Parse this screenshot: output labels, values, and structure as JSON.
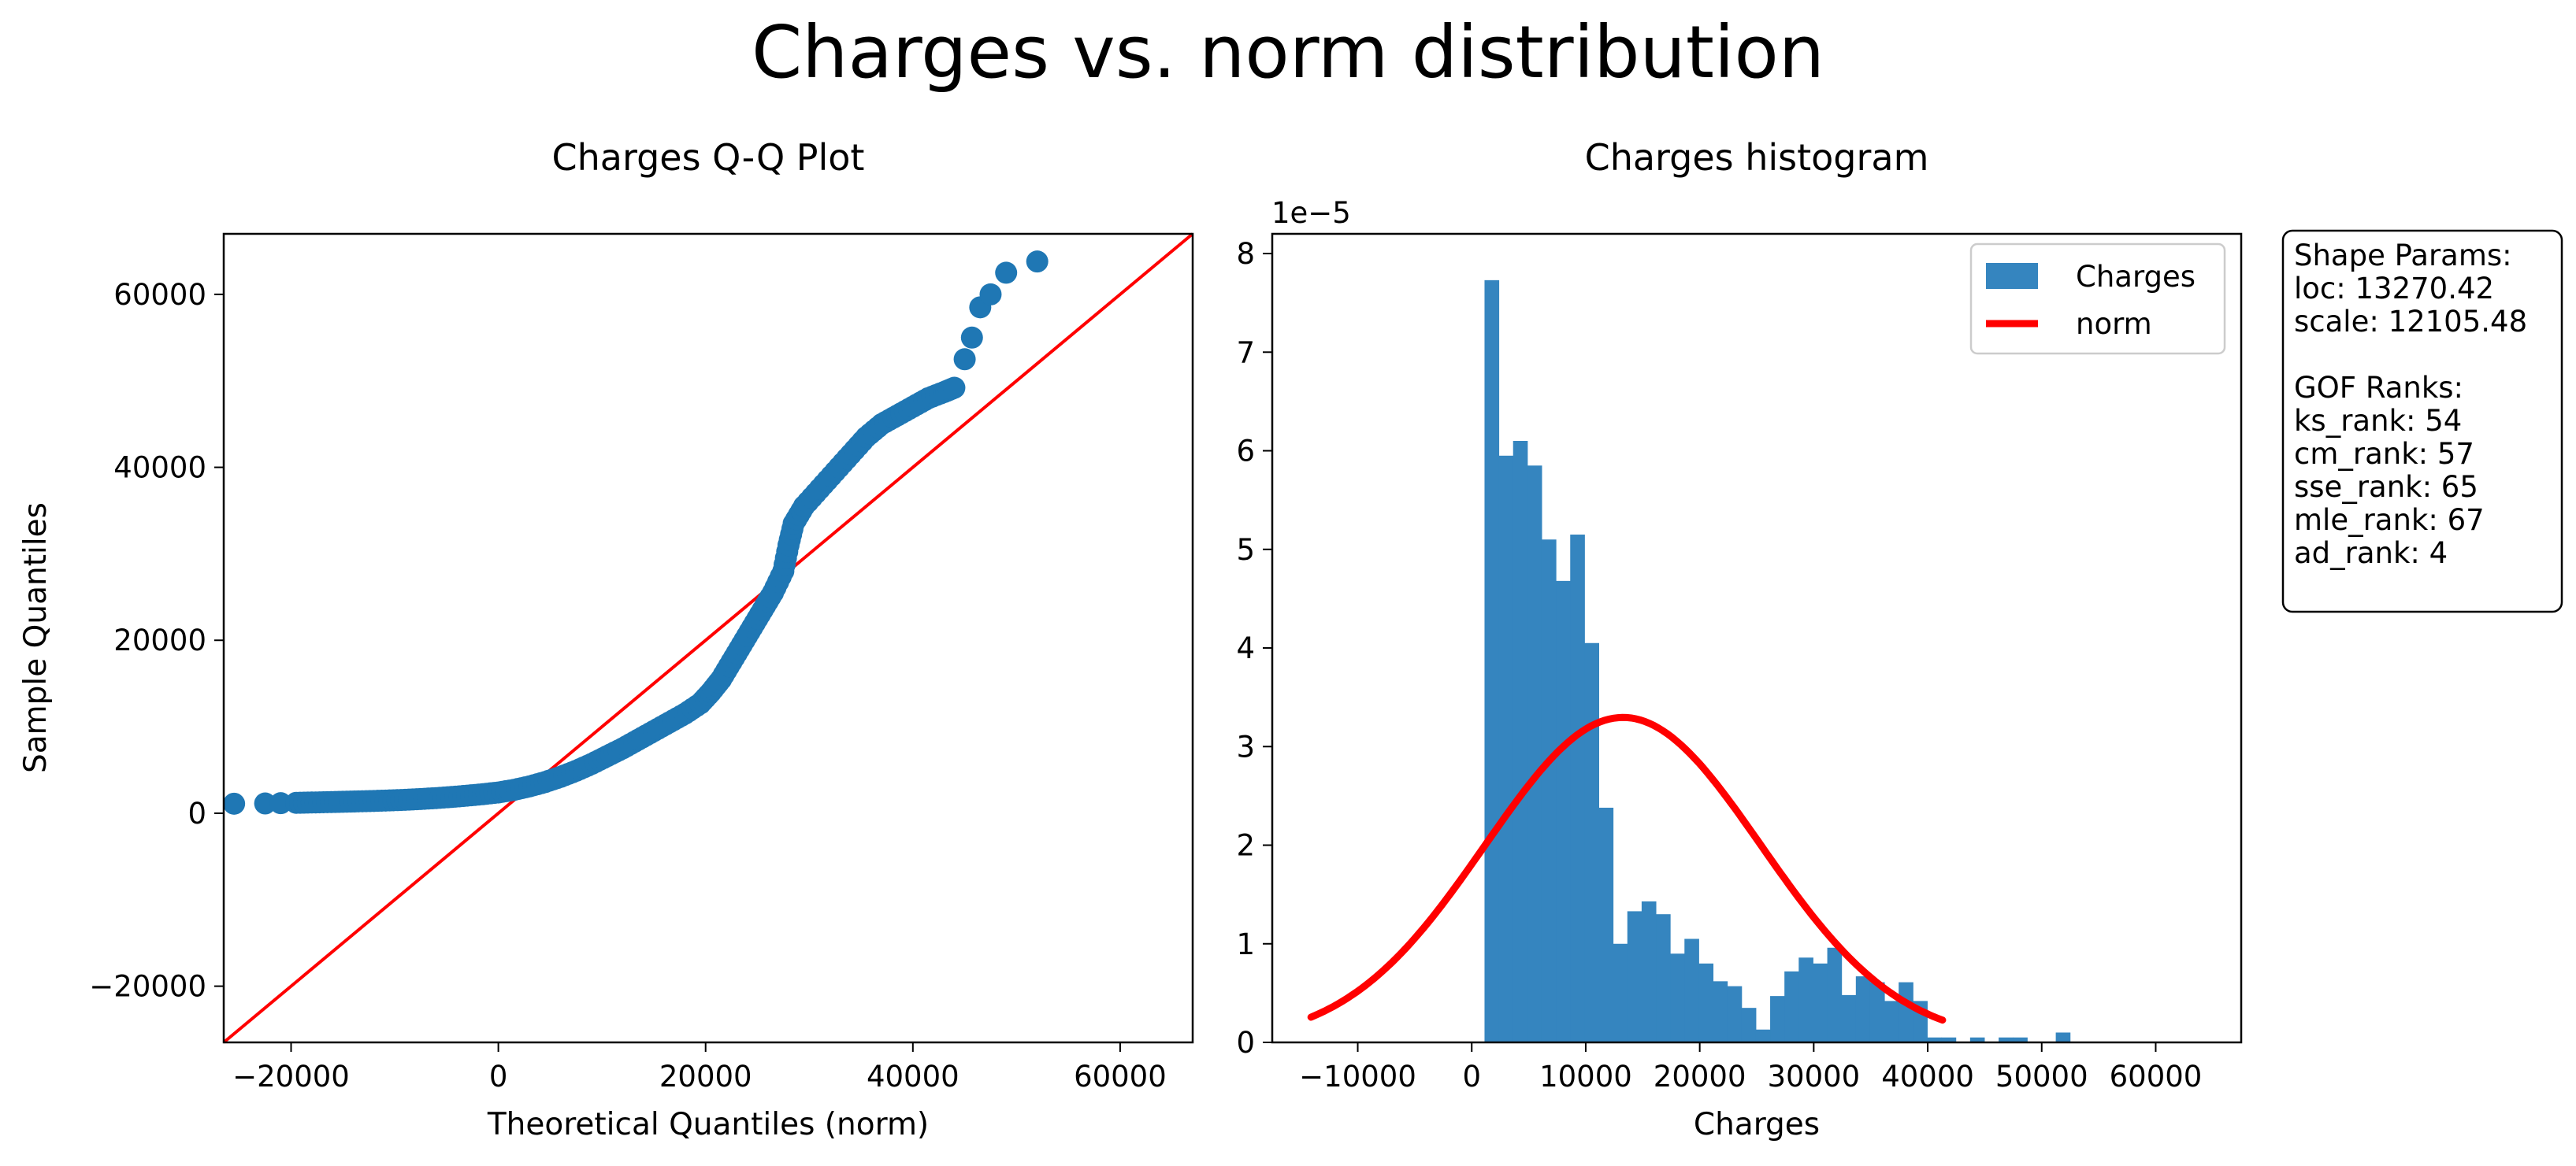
{
  "figure": {
    "suptitle": "Charges vs. norm distribution"
  },
  "chart_data": [
    {
      "type": "scatter",
      "title": "Charges Q-Q Plot",
      "xlabel": "Theoretical Quantiles (norm)",
      "ylabel": "Sample Quantiles",
      "xlim": [
        -26500,
        67000
      ],
      "ylim": [
        -26500,
        67000
      ],
      "xticks": [
        -20000,
        0,
        20000,
        40000,
        60000
      ],
      "xtick_labels": [
        "−20000",
        "0",
        "20000",
        "40000",
        "60000"
      ],
      "yticks": [
        -20000,
        0,
        20000,
        40000,
        60000
      ],
      "ytick_labels": [
        "−20000",
        "0",
        "20000",
        "40000",
        "60000"
      ],
      "points": [
        [
          -25500,
          1100
        ],
        [
          -22500,
          1130
        ],
        [
          -21000,
          1160
        ],
        [
          -19500,
          1200
        ],
        [
          -18000,
          1240
        ],
        [
          -16500,
          1280
        ],
        [
          -15000,
          1320
        ],
        [
          -13500,
          1370
        ],
        [
          -12000,
          1420
        ],
        [
          -10500,
          1480
        ],
        [
          -9000,
          1550
        ],
        [
          -7500,
          1640
        ],
        [
          -6000,
          1750
        ],
        [
          -4500,
          1880
        ],
        [
          -3000,
          2030
        ],
        [
          -1500,
          2200
        ],
        [
          0,
          2400
        ],
        [
          1500,
          2700
        ],
        [
          3000,
          3100
        ],
        [
          4500,
          3600
        ],
        [
          6000,
          4200
        ],
        [
          7500,
          4900
        ],
        [
          9000,
          5700
        ],
        [
          10500,
          6600
        ],
        [
          12000,
          7500
        ],
        [
          13500,
          8500
        ],
        [
          15000,
          9500
        ],
        [
          16500,
          10500
        ],
        [
          18000,
          11500
        ],
        [
          19500,
          12700
        ],
        [
          20500,
          14000
        ],
        [
          21500,
          15500
        ],
        [
          22500,
          17500
        ],
        [
          23500,
          19500
        ],
        [
          24500,
          21500
        ],
        [
          25500,
          23500
        ],
        [
          26500,
          25500
        ],
        [
          27500,
          28000
        ],
        [
          28000,
          31000
        ],
        [
          28500,
          33500
        ],
        [
          29500,
          35500
        ],
        [
          31000,
          37500
        ],
        [
          32500,
          39500
        ],
        [
          34000,
          41500
        ],
        [
          35500,
          43500
        ],
        [
          37000,
          45000
        ],
        [
          38500,
          46000
        ],
        [
          40000,
          47000
        ],
        [
          41500,
          48000
        ],
        [
          43000,
          48700
        ],
        [
          44000,
          49200
        ],
        [
          45000,
          52500
        ],
        [
          45700,
          55000
        ],
        [
          46500,
          58500
        ],
        [
          47500,
          60000
        ],
        [
          49000,
          62500
        ],
        [
          52000,
          63800
        ]
      ],
      "reference_line": {
        "from": [
          -26500,
          -26500
        ],
        "to": [
          67000,
          67000
        ]
      },
      "colors": {
        "points": "#1f77b4",
        "line": "#ff0000"
      }
    },
    {
      "type": "bar",
      "title": "Charges histogram",
      "xlabel": "Charges",
      "ylabel": "",
      "y_offset_label": "1e−5",
      "xlim": [
        -17500,
        67500
      ],
      "ylim": [
        0,
        8.2
      ],
      "xticks": [
        -10000,
        0,
        10000,
        20000,
        30000,
        40000,
        50000,
        60000
      ],
      "xtick_labels": [
        "−10000",
        "0",
        "10000",
        "20000",
        "30000",
        "40000",
        "50000",
        "60000"
      ],
      "yticks": [
        0,
        1,
        2,
        3,
        4,
        5,
        6,
        7,
        8
      ],
      "ytick_labels": [
        "0",
        "1",
        "2",
        "3",
        "4",
        "5",
        "6",
        "7",
        "8"
      ],
      "bins": {
        "start": 1122,
        "width": 1252.8
      },
      "values": [
        7.73,
        5.95,
        6.1,
        5.85,
        5.1,
        4.68,
        5.15,
        4.05,
        2.38,
        1.0,
        1.33,
        1.43,
        1.3,
        0.9,
        1.05,
        0.8,
        0.62,
        0.57,
        0.35,
        0.13,
        0.47,
        0.72,
        0.86,
        0.8,
        0.96,
        0.48,
        0.67,
        0.61,
        0.42,
        0.61,
        0.42,
        0.05,
        0.05,
        0.0,
        0.05,
        0.0,
        0.05,
        0.05,
        0.0,
        0.0,
        0.1
      ],
      "curve": {
        "loc": 13270.42,
        "scale": 12105.48,
        "x_from": -14100,
        "x_to": 41300
      },
      "series": [
        {
          "name": "Charges",
          "color": "#3585bf"
        },
        {
          "name": "norm",
          "color": "#ff0000"
        }
      ],
      "legend_position": "upper-right"
    }
  ],
  "info_box": {
    "lines": [
      "Shape Params:",
      "loc: 13270.42",
      "scale: 12105.48",
      "",
      "GOF Ranks:",
      "ks_rank: 54",
      "cm_rank: 57",
      "sse_rank: 65",
      "mle_rank: 67",
      "ad_rank: 4"
    ]
  }
}
